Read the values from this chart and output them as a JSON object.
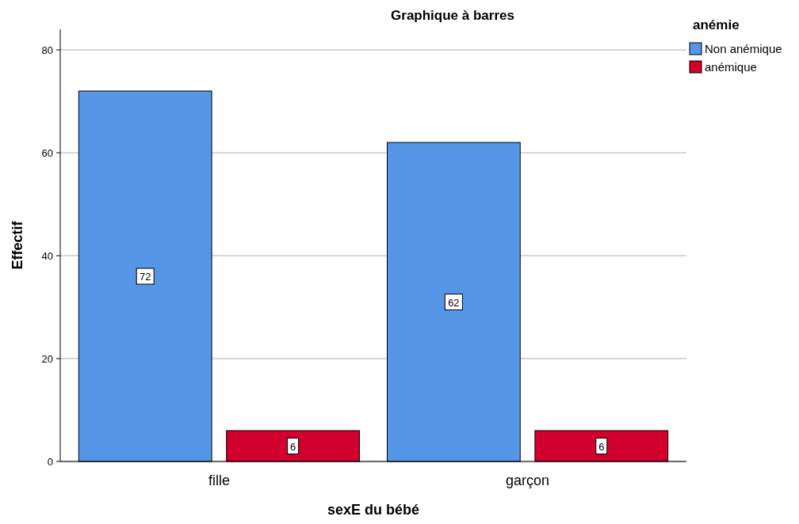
{
  "chart_data": {
    "type": "bar",
    "title": "Graphique à barres",
    "xlabel": "sexE du bébé",
    "ylabel": "Effectif",
    "legend_title": "anémie",
    "categories": [
      "fille",
      "garçon"
    ],
    "series": [
      {
        "name": "Non anémique",
        "color": "#5596e6",
        "values": [
          72,
          62
        ]
      },
      {
        "name": "anémique",
        "color": "#d2002d",
        "values": [
          6,
          6
        ]
      }
    ],
    "ylim": [
      0,
      84
    ],
    "yticks": [
      0,
      20,
      40,
      60,
      80
    ],
    "grid": "y",
    "legend": "top right",
    "data_labels": true
  }
}
